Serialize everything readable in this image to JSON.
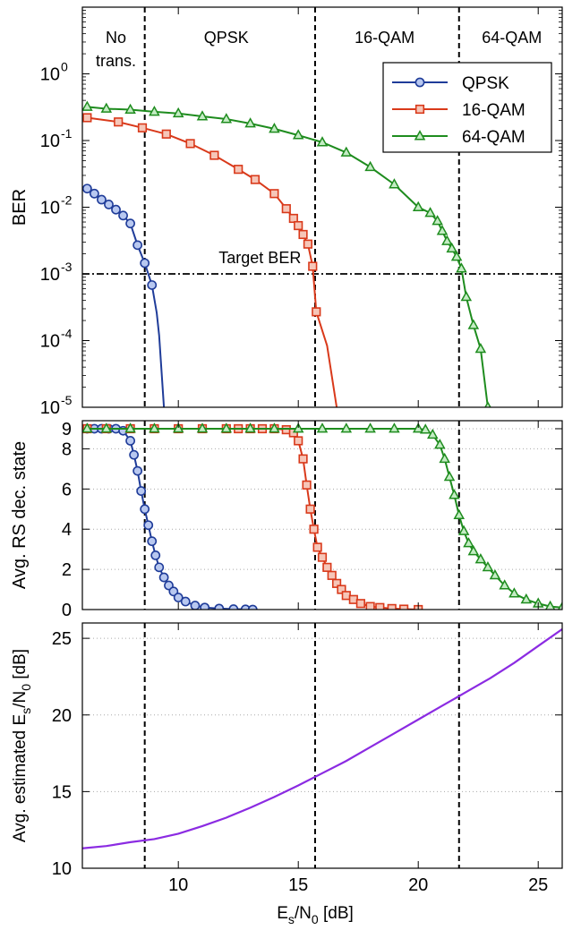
{
  "colors": {
    "qpsk": "#1f3c99",
    "qam16": "#d9391a",
    "qam64": "#1e8c1e",
    "estimate": "#8b2be2",
    "qpsk_fill": "#b8c8f0",
    "qam16_fill": "#f6c6b8",
    "qam64_fill": "#c4ecc4"
  },
  "icons": {
    "qpsk": "circle-marker",
    "qam16": "square-marker",
    "qam64": "triangle-marker"
  },
  "chart_data": [
    {
      "type": "line",
      "ylabel": "BER",
      "yscale": "log",
      "xlim": [
        6,
        26
      ],
      "ylim_exponents": [
        -5,
        1
      ],
      "ytick_labels": [
        {
          "base": "10",
          "exp": "0",
          "value": 1
        },
        {
          "base": "10",
          "exp": "-1",
          "value": 0.1
        },
        {
          "base": "10",
          "exp": "-2",
          "value": 0.01
        },
        {
          "base": "10",
          "exp": "-3",
          "value": 0.001
        },
        {
          "base": "10",
          "exp": "-4",
          "value": 0.0001
        },
        {
          "base": "10",
          "exp": "-5",
          "value": 1e-05
        }
      ],
      "legend": {
        "position": "top-right",
        "entries": [
          "QPSK",
          "16-QAM",
          "64-QAM"
        ]
      },
      "region_labels": [
        {
          "text": "No",
          "x": 7.4,
          "line": 1
        },
        {
          "text": "trans.",
          "x": 7.4,
          "line": 2
        },
        {
          "text": "QPSK",
          "x": 12.0,
          "line": 1
        },
        {
          "text": "16-QAM",
          "x": 18.6,
          "line": 1
        },
        {
          "text": "64-QAM",
          "x": 23.9,
          "line": 1
        }
      ],
      "target": {
        "label": "Target BER",
        "value": 0.001,
        "label_x": 13.4
      },
      "thresholds": [
        8.6,
        15.7,
        21.7
      ],
      "series": [
        {
          "name": "QPSK",
          "marker": "circle",
          "color_key": "qpsk",
          "x": [
            6.2,
            6.5,
            6.8,
            7.1,
            7.4,
            7.7,
            8.0,
            8.3,
            8.6,
            8.9,
            9.1,
            9.2,
            9.4
          ],
          "y": [
            0.019,
            0.016,
            0.013,
            0.011,
            0.0092,
            0.0075,
            0.0057,
            0.0027,
            0.00145,
            0.00068,
            0.00026,
            0.00012,
            1e-05
          ],
          "markers_through": 11
        },
        {
          "name": "16-QAM",
          "marker": "square",
          "color_key": "qam16",
          "x": [
            6.2,
            7.5,
            8.5,
            9.5,
            10.5,
            11.5,
            12.5,
            13.2,
            14.0,
            14.5,
            14.8,
            15.0,
            15.2,
            15.4,
            15.6,
            15.75,
            16.2,
            16.6
          ],
          "y": [
            0.22,
            0.19,
            0.155,
            0.125,
            0.09,
            0.06,
            0.037,
            0.026,
            0.016,
            0.0095,
            0.0068,
            0.0053,
            0.0039,
            0.0028,
            0.0013,
            0.00027,
            8.4e-05,
            1e-05
          ],
          "markers_through": 17
        },
        {
          "name": "64-QAM",
          "marker": "triangle",
          "color_key": "qam64",
          "x": [
            6.2,
            7.0,
            8.0,
            9.0,
            10.0,
            11.0,
            12.0,
            13.0,
            14.0,
            15.0,
            16.0,
            17.0,
            18.0,
            19.0,
            20.0,
            20.5,
            20.8,
            21.0,
            21.2,
            21.4,
            21.6,
            21.8,
            22.0,
            22.3,
            22.6,
            22.9
          ],
          "y": [
            0.32,
            0.3,
            0.29,
            0.27,
            0.255,
            0.23,
            0.21,
            0.18,
            0.15,
            0.12,
            0.094,
            0.066,
            0.04,
            0.022,
            0.01,
            0.0082,
            0.0062,
            0.0044,
            0.0031,
            0.0024,
            0.0018,
            0.0012,
            0.00045,
            0.00017,
            7.5e-05,
            1e-05
          ],
          "markers_through": 26
        }
      ]
    },
    {
      "type": "line",
      "ylabel": "Avg. RS dec. state",
      "xlim": [
        6,
        26
      ],
      "ylim": [
        0,
        9.4
      ],
      "yticks": [
        0,
        2,
        4,
        6,
        8,
        9
      ],
      "ytick_labels": [
        "0",
        "2",
        "4",
        "6",
        "8",
        "9"
      ],
      "thresholds": [
        8.6,
        15.7,
        21.7
      ],
      "series": [
        {
          "name": "QPSK",
          "marker": "circle",
          "color_key": "qpsk",
          "x": [
            6.2,
            6.5,
            6.8,
            7.1,
            7.4,
            7.7,
            8.0,
            8.15,
            8.3,
            8.45,
            8.6,
            8.75,
            8.9,
            9.05,
            9.2,
            9.4,
            9.6,
            9.8,
            10.0,
            10.3,
            10.7,
            11.1,
            11.7,
            12.3,
            12.8,
            13.1
          ],
          "y": [
            9,
            9,
            9,
            9,
            9,
            8.9,
            8.4,
            7.7,
            6.9,
            5.9,
            5.0,
            4.2,
            3.4,
            2.7,
            2.1,
            1.6,
            1.2,
            0.9,
            0.6,
            0.4,
            0.2,
            0.1,
            0.05,
            0.02,
            0.01,
            0
          ]
        },
        {
          "name": "16-QAM",
          "marker": "square",
          "color_key": "qam16",
          "x": [
            6.2,
            7.0,
            8.0,
            9.0,
            10.0,
            11.0,
            12.0,
            12.5,
            13.0,
            13.5,
            14.0,
            14.5,
            14.8,
            15.0,
            15.2,
            15.35,
            15.5,
            15.65,
            15.8,
            16.0,
            16.2,
            16.4,
            16.6,
            16.8,
            17.0,
            17.3,
            17.6,
            18.0,
            18.4,
            18.9,
            19.4,
            20.0
          ],
          "y": [
            9,
            9,
            9,
            9,
            9,
            9,
            9,
            9,
            9,
            9,
            9,
            8.95,
            8.8,
            8.4,
            7.5,
            6.2,
            5.0,
            4.0,
            3.1,
            2.6,
            2.1,
            1.7,
            1.3,
            1.0,
            0.7,
            0.5,
            0.3,
            0.15,
            0.1,
            0.05,
            0.02,
            0
          ]
        },
        {
          "name": "64-QAM",
          "marker": "triangle",
          "color_key": "qam64",
          "x": [
            6.2,
            7.0,
            8.0,
            9.0,
            10.0,
            11.0,
            12.0,
            13.0,
            14.0,
            15.0,
            16.0,
            17.0,
            18.0,
            19.0,
            20.0,
            20.3,
            20.6,
            20.9,
            21.1,
            21.3,
            21.5,
            21.7,
            21.9,
            22.1,
            22.3,
            22.6,
            22.9,
            23.2,
            23.6,
            24.0,
            24.5,
            25.0,
            25.5,
            26.0
          ],
          "y": [
            9,
            9,
            9,
            9,
            9,
            9,
            9,
            9,
            9,
            9,
            9,
            9,
            9,
            9,
            9,
            8.95,
            8.7,
            8.2,
            7.5,
            6.6,
            5.7,
            4.7,
            3.9,
            3.3,
            2.9,
            2.5,
            2.1,
            1.7,
            1.2,
            0.8,
            0.5,
            0.3,
            0.15,
            0.1
          ]
        }
      ]
    },
    {
      "type": "line",
      "ylabel_parts": [
        {
          "text": "Avg. estimated E",
          "sub": false
        },
        {
          "text": "s",
          "sub": true
        },
        {
          "text": "/N",
          "sub": false
        },
        {
          "text": "0",
          "sub": true
        },
        {
          "text": " [dB]",
          "sub": false
        }
      ],
      "xlabel_parts": [
        {
          "text": "E",
          "sub": false
        },
        {
          "text": "s",
          "sub": true
        },
        {
          "text": "/N",
          "sub": false
        },
        {
          "text": "0",
          "sub": true
        },
        {
          "text": " [dB]",
          "sub": false
        }
      ],
      "xlim": [
        6,
        26
      ],
      "ylim": [
        10,
        26
      ],
      "xticks": [
        10,
        15,
        20,
        25
      ],
      "xtick_labels": [
        "10",
        "15",
        "20",
        "25"
      ],
      "yticks": [
        10,
        15,
        20,
        25
      ],
      "ytick_labels": [
        "10",
        "15",
        "20",
        "25"
      ],
      "thresholds": [
        8.6,
        15.7,
        21.7
      ],
      "series": [
        {
          "name": "",
          "color_key": "estimate",
          "x": [
            6,
            7,
            8,
            9,
            10,
            11,
            12,
            13,
            14,
            15,
            16,
            17,
            18,
            19,
            20,
            21,
            22,
            23,
            24,
            25,
            26
          ],
          "y": [
            11.3,
            11.45,
            11.7,
            11.9,
            12.25,
            12.75,
            13.3,
            13.95,
            14.65,
            15.4,
            16.2,
            17.0,
            17.9,
            18.8,
            19.7,
            20.6,
            21.5,
            22.4,
            23.4,
            24.5,
            25.6
          ]
        }
      ]
    }
  ]
}
